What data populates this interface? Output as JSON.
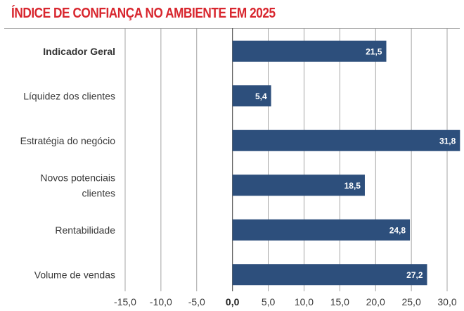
{
  "chart_data": {
    "type": "bar",
    "orientation": "horizontal",
    "title": "ÍNDICE DE CONFIANÇA NO AMBIENTE EM 2025",
    "categories": [
      [
        "Indicador Geral"
      ],
      [
        "Líquidez dos clientes"
      ],
      [
        "Estratégia do negócio"
      ],
      [
        "Novos potenciais",
        "clientes"
      ],
      [
        "Rentabilidade"
      ],
      [
        "Volume de vendas"
      ]
    ],
    "values": [
      21.5,
      5.4,
      31.8,
      18.5,
      24.8,
      27.2
    ],
    "value_labels": [
      "21,5",
      "5,4",
      "31,8",
      "18,5",
      "24,8",
      "27,2"
    ],
    "bold_categories": [
      0
    ],
    "xlim": [
      -15,
      30
    ],
    "xticks": [
      -15,
      -10,
      -5,
      0,
      5,
      10,
      15,
      20,
      25,
      30
    ],
    "xtick_labels": [
      "-15,0",
      "-10,0",
      "-5,0",
      "0,0",
      "5,0",
      "10,0",
      "15,0",
      "20,0",
      "25,0",
      "30,0"
    ],
    "grid": true,
    "bar_color": "#2d4f7c",
    "title_color": "#d8262e"
  }
}
